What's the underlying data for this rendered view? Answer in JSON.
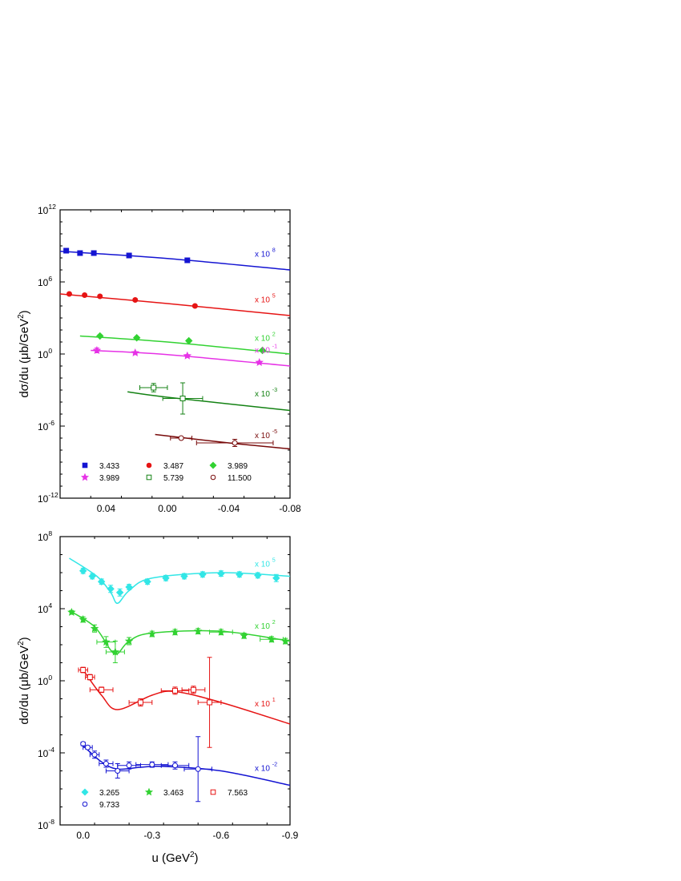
{
  "chart_data": [
    {
      "type": "scatter",
      "panel": "top",
      "xlabel": "",
      "ylabel_main": "dσ/du (μb/GeV",
      "ylabel_sup": "2",
      "ylabel_close": ")",
      "y_scale": "log10",
      "ylim_exp": [
        -12,
        12
      ],
      "xlim": [
        0.07,
        -0.08
      ],
      "x_reversed": true,
      "x_ticks": [
        {
          "v": 0.04,
          "label": "0.04"
        },
        {
          "v": 0.0,
          "label": "0.00"
        },
        {
          "v": -0.04,
          "label": "-0.04"
        },
        {
          "v": -0.08,
          "label": "-0.08"
        }
      ],
      "y_ticks": [
        {
          "e": -12,
          "base": "10",
          "sup": "-12"
        },
        {
          "e": -6,
          "base": "10",
          "sup": "-6"
        },
        {
          "e": 0,
          "base": "10",
          "sup": "0"
        },
        {
          "e": 6,
          "base": "10",
          "sup": "6"
        },
        {
          "e": 12,
          "base": "10",
          "sup": "12"
        }
      ],
      "legend_placement": "bottom-left",
      "series": [
        {
          "name": "3.433",
          "marker": "square",
          "filled": true,
          "color": "#1414d2",
          "scale_base": "x 10",
          "scale_exp": "8",
          "points": [
            [
              0.066,
              8.6,
              0.1
            ],
            [
              0.057,
              8.4,
              0.1
            ],
            [
              0.048,
              8.4,
              0.1
            ],
            [
              0.025,
              8.2,
              0.1
            ],
            [
              -0.013,
              7.8,
              0.1
            ]
          ],
          "xerr": [
            0,
            0,
            0,
            0,
            0
          ],
          "curve": [
            [
              0.07,
              8.55
            ],
            [
              0.0,
              7.95
            ],
            [
              -0.08,
              7.0
            ]
          ]
        },
        {
          "name": "3.487",
          "marker": "circle",
          "filled": true,
          "color": "#e61414",
          "scale_base": "x 10",
          "scale_exp": "5",
          "points": [
            [
              0.064,
              5.0,
              0.1
            ],
            [
              0.054,
              4.9,
              0.1
            ],
            [
              0.044,
              4.8,
              0.1
            ],
            [
              0.021,
              4.5,
              0.1
            ],
            [
              -0.018,
              4.0,
              0.1
            ]
          ],
          "xerr": [
            0,
            0,
            0,
            0,
            0
          ],
          "curve": [
            [
              0.07,
              5.0
            ],
            [
              0.0,
              4.2
            ],
            [
              -0.08,
              3.2
            ]
          ]
        },
        {
          "name": "3.989",
          "marker": "diamond",
          "filled": true,
          "color": "#32d232",
          "scale_base": "x 10",
          "scale_exp": "2",
          "points": [
            [
              0.044,
              1.5,
              0.1
            ],
            [
              0.02,
              1.35,
              0.1
            ],
            [
              -0.014,
              1.1,
              0.1
            ],
            [
              -0.062,
              0.3,
              0.1
            ]
          ],
          "xerr": [
            0,
            0,
            0,
            0
          ],
          "curve": [
            [
              0.057,
              1.5
            ],
            [
              0.0,
              1.0
            ],
            [
              -0.08,
              0.0
            ]
          ]
        },
        {
          "name": "3.989",
          "marker": "star",
          "filled": true,
          "color": "#e632e6",
          "scale_base": "x 10",
          "scale_exp": "-1",
          "points": [
            [
              0.046,
              0.3,
              0.2
            ],
            [
              0.021,
              0.1,
              0.1
            ],
            [
              -0.013,
              -0.15,
              0.1
            ],
            [
              -0.06,
              -0.7,
              0.1
            ]
          ],
          "xerr": [
            0,
            0,
            0,
            0
          ],
          "curve": [
            [
              0.05,
              0.3
            ],
            [
              0.0,
              -0.05
            ],
            [
              -0.08,
              -1.0
            ]
          ]
        },
        {
          "name": "5.739",
          "marker": "square",
          "filled": false,
          "color": "#148214",
          "scale_base": "x 10",
          "scale_exp": "-3",
          "points": [
            [
              0.009,
              -2.8,
              0.35
            ],
            [
              -0.01,
              -3.7,
              1.3
            ]
          ],
          "xerr": [
            0.009,
            0.013
          ],
          "curve": [
            [
              0.026,
              -3.15
            ],
            [
              0.0,
              -3.6
            ],
            [
              -0.08,
              -4.7
            ]
          ]
        },
        {
          "name": "11.500",
          "marker": "circle",
          "filled": false,
          "color": "#780a0a",
          "scale_base": "x 10",
          "scale_exp": "-5",
          "points": [
            [
              -0.009,
              -7.0,
              0.1
            ],
            [
              -0.044,
              -7.4,
              0.3
            ]
          ],
          "xerr": [
            0.007,
            0.025
          ],
          "curve": [
            [
              0.008,
              -6.7
            ],
            [
              -0.04,
              -7.4
            ],
            [
              -0.08,
              -7.9
            ]
          ]
        }
      ]
    },
    {
      "type": "scatter",
      "panel": "bottom",
      "xlabel_main": "u (GeV",
      "xlabel_sup": "2",
      "xlabel_close": ")",
      "ylabel_main": "dσ/du (μb/GeV",
      "ylabel_sup": "2",
      "ylabel_close": ")",
      "y_scale": "log10",
      "ylim_exp": [
        -8,
        8
      ],
      "xlim": [
        0.1,
        -0.9
      ],
      "x_reversed": true,
      "x_ticks": [
        {
          "v": 0.0,
          "label": "0.0"
        },
        {
          "v": -0.3,
          "label": "-0.3"
        },
        {
          "v": -0.6,
          "label": "-0.6"
        },
        {
          "v": -0.9,
          "label": "-0.9"
        }
      ],
      "y_ticks": [
        {
          "e": -8,
          "base": "10",
          "sup": "-8"
        },
        {
          "e": -4,
          "base": "10",
          "sup": "-4"
        },
        {
          "e": 0,
          "base": "10",
          "sup": "0"
        },
        {
          "e": 4,
          "base": "10",
          "sup": "4"
        },
        {
          "e": 8,
          "base": "10",
          "sup": "8"
        }
      ],
      "legend_placement": "bottom-left",
      "series": [
        {
          "name": "3.265",
          "marker": "diamond",
          "filled": true,
          "color": "#32e6e6",
          "scale_base": "x 10",
          "scale_exp": "5",
          "points": [
            [
              0.0,
              6.1,
              0.15
            ],
            [
              -0.04,
              5.8,
              0.15
            ],
            [
              -0.08,
              5.5,
              0.15
            ],
            [
              -0.12,
              5.1,
              0.2
            ],
            [
              -0.16,
              4.9,
              0.2
            ],
            [
              -0.2,
              5.2,
              0.15
            ],
            [
              -0.28,
              5.5,
              0.15
            ],
            [
              -0.36,
              5.7,
              0.15
            ],
            [
              -0.44,
              5.8,
              0.15
            ],
            [
              -0.52,
              5.9,
              0.15
            ],
            [
              -0.6,
              5.95,
              0.15
            ],
            [
              -0.68,
              5.9,
              0.15
            ],
            [
              -0.76,
              5.85,
              0.15
            ],
            [
              -0.84,
              5.7,
              0.2
            ]
          ],
          "xerr": [
            0,
            0,
            0,
            0,
            0,
            0,
            0,
            0,
            0,
            0,
            0,
            0,
            0,
            0
          ],
          "curve": [
            [
              0.06,
              6.8
            ],
            [
              -0.06,
              5.8
            ],
            [
              -0.12,
              4.9
            ],
            [
              -0.15,
              4.3
            ],
            [
              -0.2,
              5.0
            ],
            [
              -0.3,
              5.7
            ],
            [
              -0.6,
              6.0
            ],
            [
              -0.9,
              5.8
            ]
          ]
        },
        {
          "name": "3.463",
          "marker": "star",
          "filled": true,
          "color": "#32d232",
          "scale_base": "x 10",
          "scale_exp": "2",
          "points": [
            [
              0.05,
              3.8,
              0.1
            ],
            [
              0.0,
              3.4,
              0.15
            ],
            [
              -0.05,
              2.9,
              0.2
            ],
            [
              -0.1,
              2.15,
              0.3
            ],
            [
              -0.14,
              1.6,
              0.6
            ],
            [
              -0.2,
              2.2,
              0.2
            ],
            [
              -0.3,
              2.6,
              0.15
            ],
            [
              -0.4,
              2.7,
              0.15
            ],
            [
              -0.5,
              2.75,
              0.15
            ],
            [
              -0.6,
              2.7,
              0.15
            ],
            [
              -0.7,
              2.5,
              0.15
            ],
            [
              -0.82,
              2.3,
              0.15
            ],
            [
              -0.88,
              2.2,
              0.15
            ]
          ],
          "xerr": [
            0,
            0,
            0,
            0.04,
            0.04,
            0,
            0,
            0,
            0,
            0.05,
            0,
            0.05,
            0
          ],
          "curve": [
            [
              0.06,
              3.9
            ],
            [
              -0.05,
              3.0
            ],
            [
              -0.12,
              1.7
            ],
            [
              -0.15,
              1.5
            ],
            [
              -0.2,
              2.2
            ],
            [
              -0.3,
              2.65
            ],
            [
              -0.6,
              2.75
            ],
            [
              -0.9,
              2.2
            ]
          ]
        },
        {
          "name": "7.563",
          "marker": "square",
          "filled": false,
          "color": "#e61414",
          "scale_base": "x 10",
          "scale_exp": "1",
          "points": [
            [
              0.0,
              0.6,
              0.15
            ],
            [
              -0.03,
              0.2,
              0.15
            ],
            [
              -0.08,
              -0.5,
              0.15
            ],
            [
              -0.25,
              -1.2,
              0.2
            ],
            [
              -0.4,
              -0.55,
              0.2
            ],
            [
              -0.48,
              -0.5,
              0.2
            ],
            [
              -0.55,
              -1.2,
              2.5
            ]
          ],
          "xerr": [
            0.02,
            0.02,
            0.05,
            0.05,
            0.06,
            0.05,
            0.05
          ],
          "curve": [
            [
              0.0,
              0.6
            ],
            [
              -0.08,
              -0.8
            ],
            [
              -0.15,
              -1.6
            ],
            [
              -0.3,
              -0.8
            ],
            [
              -0.4,
              -0.6
            ],
            [
              -0.6,
              -1.2
            ],
            [
              -0.9,
              -2.4
            ]
          ]
        },
        {
          "name": "9.733",
          "marker": "circle",
          "filled": false,
          "color": "#1414d2",
          "scale_base": "x 10",
          "scale_exp": "-2",
          "points": [
            [
              0.0,
              -3.5,
              0.1
            ],
            [
              -0.02,
              -3.7,
              0.1
            ],
            [
              -0.05,
              -4.1,
              0.2
            ],
            [
              -0.1,
              -4.6,
              0.2
            ],
            [
              -0.15,
              -5.0,
              0.4
            ],
            [
              -0.2,
              -4.7,
              0.2
            ],
            [
              -0.3,
              -4.65,
              0.15
            ],
            [
              -0.4,
              -4.7,
              0.2
            ],
            [
              -0.5,
              -4.9,
              1.8
            ]
          ],
          "xerr": [
            0,
            0.02,
            0.02,
            0.03,
            0.05,
            0.05,
            0.07,
            0.06,
            0.06
          ],
          "curve": [
            [
              0.0,
              -3.6
            ],
            [
              -0.08,
              -4.5
            ],
            [
              -0.15,
              -4.9
            ],
            [
              -0.25,
              -4.8
            ],
            [
              -0.35,
              -4.75
            ],
            [
              -0.6,
              -5.0
            ],
            [
              -0.9,
              -5.8
            ]
          ]
        }
      ]
    }
  ]
}
